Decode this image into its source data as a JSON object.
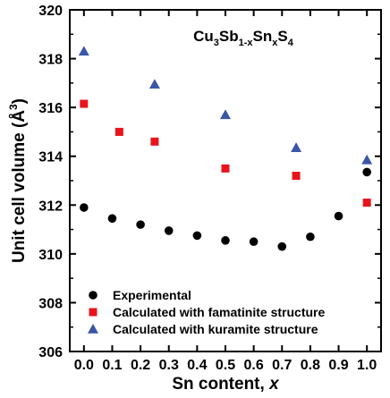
{
  "chart_data": {
    "type": "scatter",
    "title_parts": {
      "base1": "Cu",
      "sub1": "3",
      "base2": "Sb",
      "sub2": "1-x",
      "base3": "Sn",
      "sub3": "x",
      "base4": "S",
      "sub4": "4"
    },
    "xlabel": "Sn content, ",
    "xlabel_var": "x",
    "ylabel": "Unit cell volume (Å",
    "ylabel_sup": "3",
    "ylabel_close": ")",
    "xlim": [
      -0.05,
      1.05
    ],
    "ylim": [
      306,
      320
    ],
    "xticks": [
      "0.0",
      "0.1",
      "0.2",
      "0.3",
      "0.4",
      "0.5",
      "0.6",
      "0.7",
      "0.8",
      "0.9",
      "1.0"
    ],
    "yticks": [
      "306",
      "308",
      "310",
      "312",
      "314",
      "316",
      "318",
      "320"
    ],
    "legend_position": "bottom-left",
    "series": [
      {
        "name": "Experimental",
        "marker": "circle",
        "color": "#000000",
        "points": [
          {
            "x": 0.0,
            "y": 311.9
          },
          {
            "x": 0.1,
            "y": 311.45
          },
          {
            "x": 0.2,
            "y": 311.2
          },
          {
            "x": 0.3,
            "y": 310.95
          },
          {
            "x": 0.4,
            "y": 310.75
          },
          {
            "x": 0.5,
            "y": 310.55
          },
          {
            "x": 0.6,
            "y": 310.5
          },
          {
            "x": 0.7,
            "y": 310.3
          },
          {
            "x": 0.8,
            "y": 310.7
          },
          {
            "x": 0.9,
            "y": 311.55
          },
          {
            "x": 1.0,
            "y": 313.35
          }
        ]
      },
      {
        "name": "Calculated with famatinite structure",
        "marker": "square",
        "color": "#e8141c",
        "points": [
          {
            "x": 0.0,
            "y": 316.15
          },
          {
            "x": 0.125,
            "y": 315.0
          },
          {
            "x": 0.25,
            "y": 314.6
          },
          {
            "x": 0.5,
            "y": 313.5
          },
          {
            "x": 0.75,
            "y": 313.2
          },
          {
            "x": 1.0,
            "y": 312.1
          }
        ]
      },
      {
        "name": "Calculated with kuramite structure",
        "marker": "triangle",
        "color": "#3b56a6",
        "points": [
          {
            "x": 0.0,
            "y": 318.3
          },
          {
            "x": 0.25,
            "y": 316.95
          },
          {
            "x": 0.5,
            "y": 315.7
          },
          {
            "x": 0.75,
            "y": 314.35
          },
          {
            "x": 1.0,
            "y": 313.85
          }
        ]
      }
    ]
  }
}
